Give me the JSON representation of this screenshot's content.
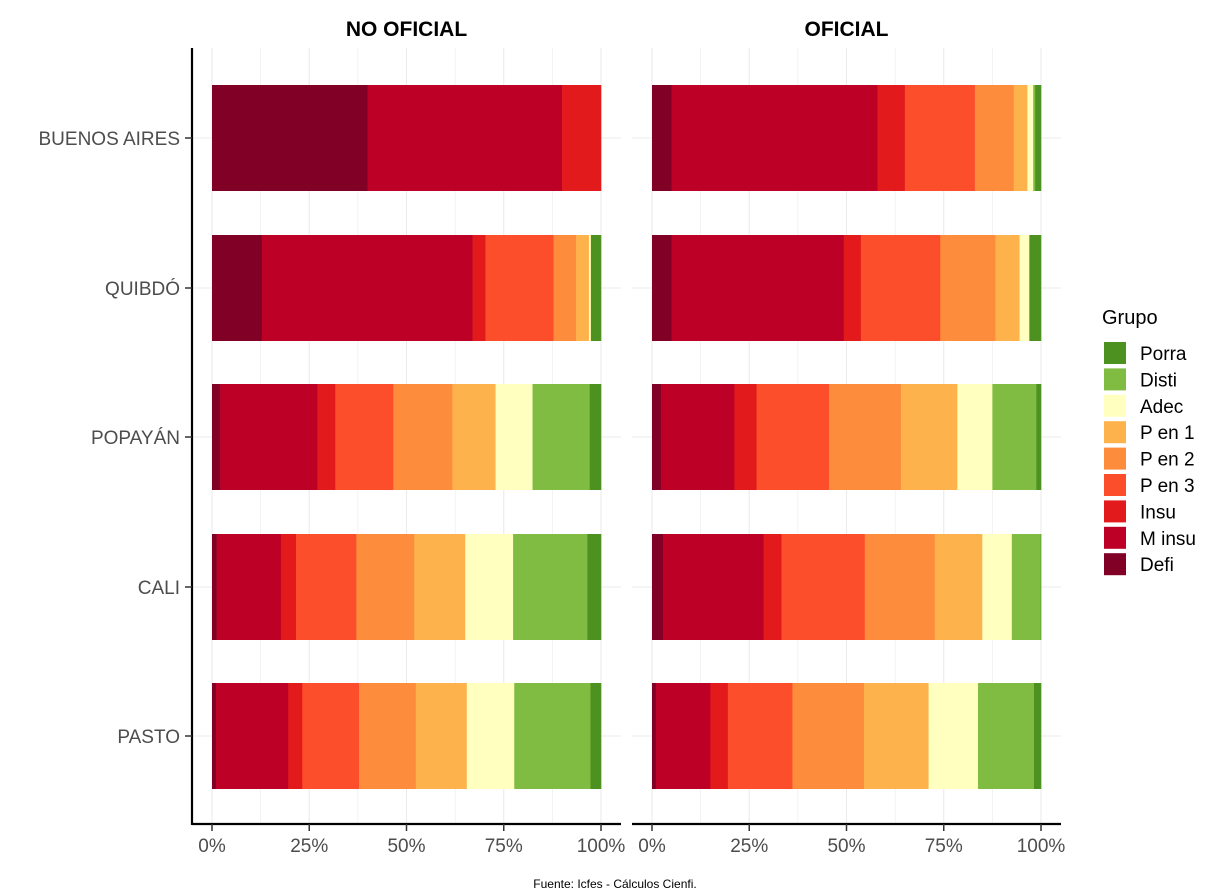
{
  "chart_data": {
    "type": "bar",
    "orientation": "horizontal",
    "stacked": true,
    "facets": [
      "NO OFICIAL",
      "OFICIAL"
    ],
    "categories": [
      "BUENOS AIRES",
      "QUIBDÓ",
      "POPAYÁN",
      "CALI",
      "PASTO"
    ],
    "xlim": [
      0,
      100
    ],
    "x_ticks": [
      "0%",
      "25%",
      "50%",
      "75%",
      "100%"
    ],
    "grid": true,
    "legend": {
      "title": "Grupo",
      "placement": "right",
      "entries": [
        "Porra",
        "Disti",
        "Adec",
        "P en 1",
        "P en 2",
        "P en 3",
        "Insu",
        "M insu",
        "Defi"
      ]
    },
    "colors": {
      "Defi": "#800026",
      "M insu": "#bd0026",
      "Insu": "#e31a1c",
      "P en 3": "#fc4e2a",
      "P en 2": "#fd8d3c",
      "P en 1": "#feb24c",
      "Adec": "#ffffbf",
      "Disti": "#7fbc41",
      "Porra": "#4d9221"
    },
    "stack_order": [
      "Defi",
      "M insu",
      "Insu",
      "P en 3",
      "P en 2",
      "P en 1",
      "Adec",
      "Disti",
      "Porra"
    ],
    "data": {
      "NO OFICIAL": {
        "BUENOS AIRES": [
          40.0,
          50.0,
          10.0,
          0,
          0,
          0,
          0,
          0,
          0
        ],
        "QUIBDÓ": [
          12.8,
          54.2,
          3.3,
          17.5,
          5.8,
          3.3,
          0.5,
          0,
          2.6
        ],
        "POPAYÁN": [
          2.1,
          25.0,
          4.6,
          14.9,
          15.2,
          11.1,
          9.5,
          14.7,
          2.9
        ],
        "CALI": [
          1.2,
          16.5,
          3.9,
          15.5,
          14.9,
          13.1,
          12.3,
          19.1,
          3.5
        ],
        "PASTO": [
          1.0,
          18.6,
          3.6,
          14.6,
          14.6,
          13.1,
          12.2,
          19.6,
          2.7
        ]
      },
      "OFICIAL": {
        "BUENOS AIRES": [
          5.0,
          53.0,
          7.0,
          18.0,
          10.0,
          3.5,
          1.5,
          0.5,
          1.5
        ],
        "QUIBDÓ": [
          5.0,
          44.3,
          4.4,
          20.4,
          14.2,
          6.2,
          2.5,
          0,
          3.0
        ],
        "POPAYÁN": [
          2.3,
          18.9,
          5.7,
          18.6,
          18.5,
          14.5,
          9.0,
          11.3,
          1.2
        ],
        "CALI": [
          2.8,
          25.9,
          4.6,
          21.4,
          18.0,
          12.2,
          7.6,
          7.4,
          0.1
        ],
        "PASTO": [
          1.0,
          14.0,
          4.5,
          16.6,
          18.4,
          16.6,
          12.7,
          14.4,
          1.8
        ]
      }
    }
  },
  "caption": "Fuente: Icfes - Cálculos Cienfi."
}
